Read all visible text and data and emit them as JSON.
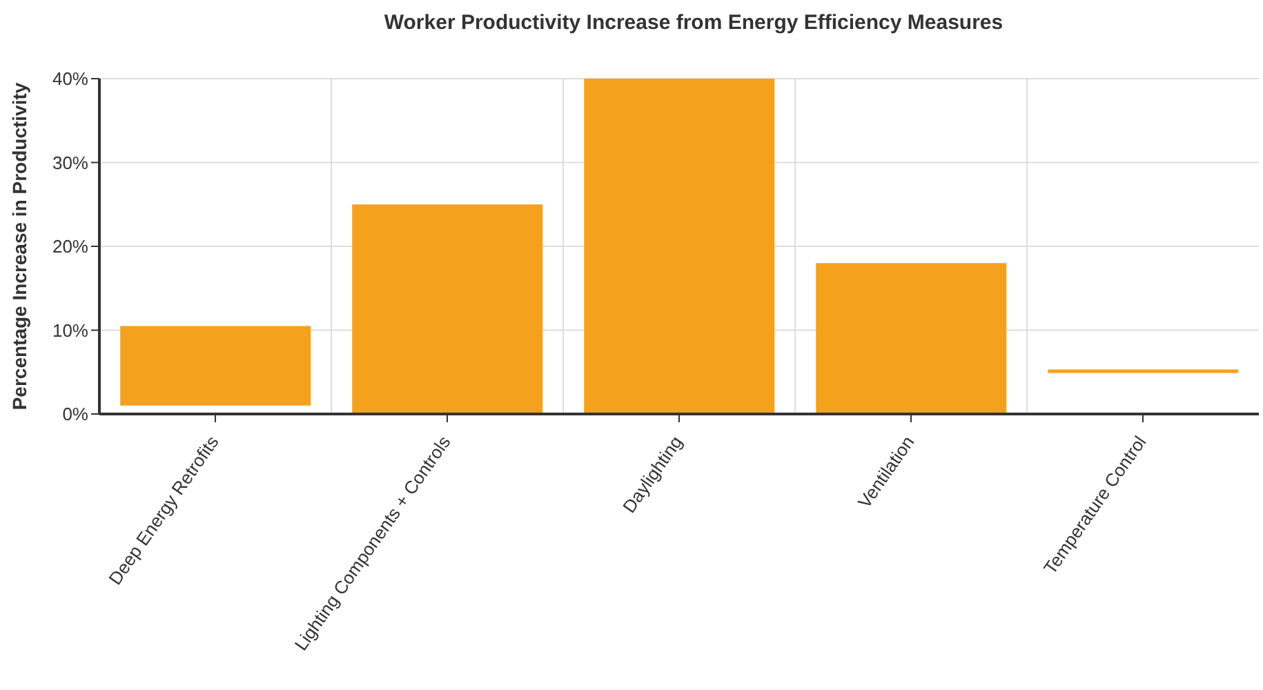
{
  "chart_data": {
    "type": "bar",
    "title": "Worker Productivity Increase from Energy Efficiency Measures",
    "ylabel": "Percentage Increase in Productivity",
    "categories": [
      "Deep Energy Retrofits",
      "Lighting Components + Controls",
      "Daylighting",
      "Ventilation",
      "Temperature Control"
    ],
    "values": [
      9.5,
      25,
      40,
      18,
      0.4
    ],
    "base": [
      1,
      0,
      0,
      0,
      4.9
    ],
    "color": "#f4a11e",
    "ylim": [
      0,
      40
    ],
    "yticks": [
      {
        "value": 0,
        "label": "0%"
      },
      {
        "value": 10,
        "label": "10%"
      },
      {
        "value": 20,
        "label": "20%"
      },
      {
        "value": 30,
        "label": "30%"
      },
      {
        "value": 40,
        "label": "40%"
      }
    ],
    "grid": true
  }
}
